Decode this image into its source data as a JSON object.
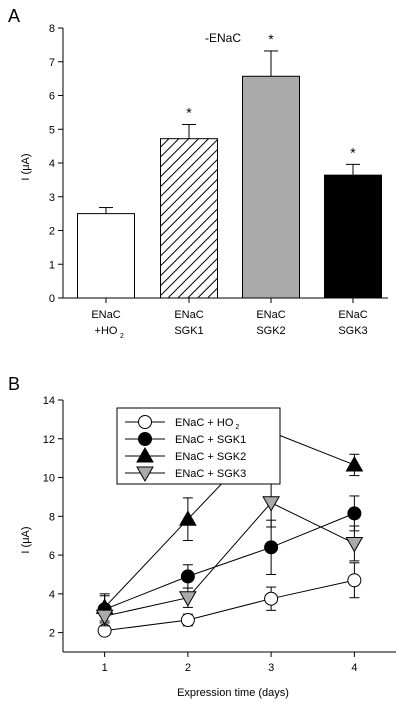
{
  "panel_a": {
    "letter": "A",
    "chart_data": {
      "type": "bar",
      "title": "-ENaC",
      "ylabel": "I (μA)",
      "ylim": [
        0,
        8
      ],
      "yticks": [
        0,
        1,
        2,
        3,
        4,
        5,
        6,
        7,
        8
      ],
      "categories": [
        {
          "line1": "ENaC",
          "line2": "+HO",
          "sub": "2"
        },
        {
          "line1": "ENaC",
          "line2": "SGK1",
          "sub": ""
        },
        {
          "line1": "ENaC",
          "line2": "SGK2",
          "sub": ""
        },
        {
          "line1": "ENaC",
          "line2": "SGK3",
          "sub": ""
        }
      ],
      "values": [
        2.5,
        4.72,
        6.57,
        3.64
      ],
      "errors": [
        0.18,
        0.42,
        0.75,
        0.32
      ],
      "significance": [
        "",
        "*",
        "*",
        "*"
      ],
      "fills": [
        "white",
        "hatched",
        "#aaaaaa",
        "#000000"
      ]
    }
  },
  "panel_b": {
    "letter": "B",
    "chart_data": {
      "type": "line",
      "xlabel": "Expression time (days)",
      "ylabel": "I (μA)",
      "x": [
        1,
        2,
        3,
        4
      ],
      "xlim": [
        0.5,
        4.5
      ],
      "ylim": [
        1,
        14
      ],
      "yticks": [
        2,
        4,
        6,
        8,
        10,
        12,
        14
      ],
      "xticks": [
        1,
        2,
        3,
        4
      ],
      "legend_position": "top-left",
      "series": [
        {
          "name": "ENaC + HO",
          "sub": "2",
          "marker": "circle",
          "fill": "#ffffff",
          "values": [
            2.1,
            2.65,
            3.75,
            4.7
          ],
          "errors": [
            0.2,
            0.3,
            0.6,
            0.9
          ]
        },
        {
          "name": "ENaC + SGK1",
          "sub": "",
          "marker": "circle",
          "fill": "#000000",
          "values": [
            3.2,
            4.9,
            6.4,
            8.15
          ],
          "errors": [
            0.7,
            0.6,
            1.4,
            0.9
          ]
        },
        {
          "name": "ENaC + SGK2",
          "sub": "",
          "marker": "triangle-up",
          "fill": "#000000",
          "values": [
            3.3,
            7.85,
            12.35,
            10.65
          ],
          "errors": [
            0.7,
            1.1,
            0.85,
            0.55
          ]
        },
        {
          "name": "ENaC + SGK3",
          "sub": "",
          "marker": "triangle-down",
          "fill": "#aaaaaa",
          "values": [
            2.85,
            3.8,
            8.7,
            6.6
          ],
          "errors": [
            0.5,
            0.5,
            1.25,
            0.9
          ]
        }
      ]
    }
  }
}
